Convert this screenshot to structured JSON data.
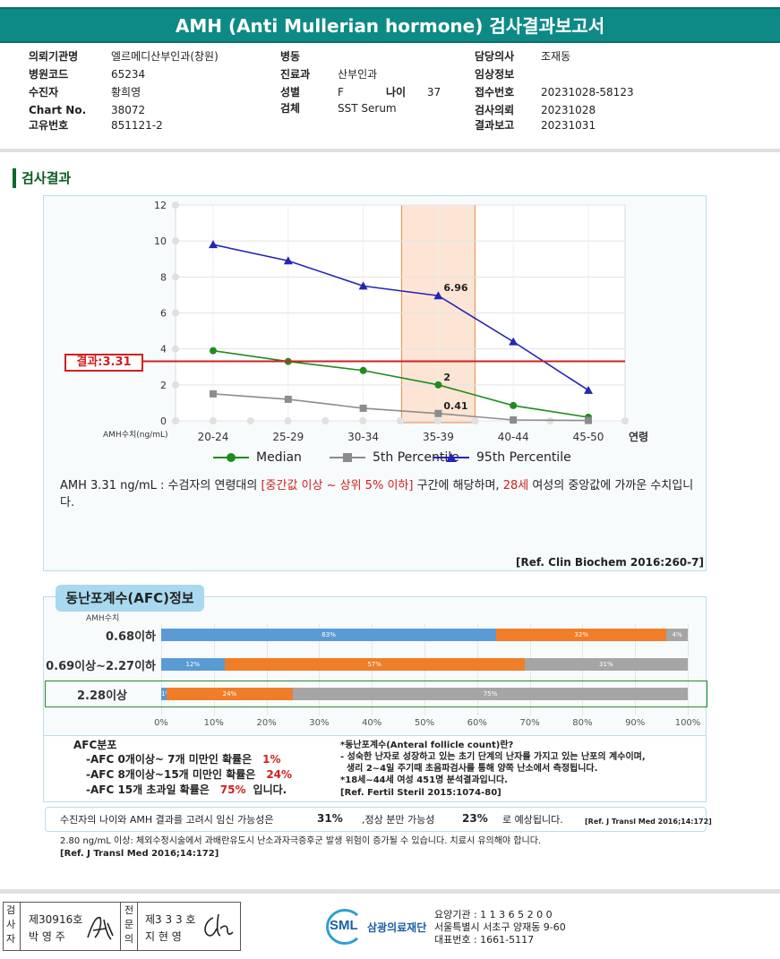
{
  "header": {
    "title": "AMH (Anti Mullerian hormone) 검사결과보고서"
  },
  "info": {
    "col1": [
      {
        "k": "의뢰기관명",
        "v": "엘르메디산부인과(창원)"
      },
      {
        "k": "병원코드",
        "v": "65234"
      },
      {
        "k": "수진자",
        "v": "황희영"
      },
      {
        "k": "Chart No.",
        "v": "38072"
      },
      {
        "k": "고유번호",
        "v": "851121-2"
      }
    ],
    "col2": [
      {
        "k": "병동",
        "v": ""
      },
      {
        "k": "진료과",
        "v": "산부인과"
      },
      {
        "k": "성별",
        "v": "F"
      },
      {
        "k": "검체",
        "v": "SST Serum"
      }
    ],
    "age_label": "나이",
    "age_value": "37",
    "col3": [
      {
        "k": "담당의사",
        "v": "조재동"
      },
      {
        "k": "임상정보",
        "v": ""
      },
      {
        "k": "접수번호",
        "v": "20231028-58123"
      },
      {
        "k": "검사의뢰",
        "v": "20231028"
      },
      {
        "k": "결과보고",
        "v": "20231031"
      }
    ]
  },
  "section_title": "검사결과",
  "chart_data": {
    "type": "line",
    "categories": [
      "20-24",
      "25-29",
      "30-34",
      "35-39",
      "40-44",
      "45-50"
    ],
    "xlabel": "연령",
    "ylabel": "AMH수치(ng/mL)",
    "ylim": [
      0,
      12
    ],
    "yticks": [
      "0",
      "2",
      "4",
      "6",
      "8",
      "10",
      "12"
    ],
    "grid": true,
    "highlight_category": "35-39",
    "result_line": {
      "label": "결과:3.31",
      "value": 3.31,
      "color": "#d02020"
    },
    "series": [
      {
        "name": "Median",
        "values": [
          3.9,
          3.3,
          2.8,
          2.0,
          0.85,
          0.2
        ],
        "color": "#1e8c1e",
        "marker": "circle"
      },
      {
        "name": "5th Percentile",
        "values": [
          1.5,
          1.2,
          0.7,
          0.41,
          0.05,
          0.02
        ],
        "color": "#8c8c8c",
        "marker": "square"
      },
      {
        "name": "95th Percentile",
        "values": [
          9.8,
          8.9,
          7.5,
          6.96,
          4.4,
          1.7
        ],
        "color": "#2525b5",
        "marker": "triangle"
      }
    ],
    "data_labels": [
      {
        "series": "95th Percentile",
        "category": "35-39",
        "text": "6.96"
      },
      {
        "series": "Median",
        "category": "35-39",
        "text": "2"
      },
      {
        "series": "5th Percentile",
        "category": "35-39",
        "text": "0.41"
      }
    ]
  },
  "description": {
    "prefix": "AMH  3.31 ng/mL : 수검자의 연령대의 ",
    "range": "[중간값 이상 ~ 상위 5% 이하]",
    "mid": " 구간에 해당하며, ",
    "age": "28세",
    "suffix": " 여성의 중앙값에 가까운 수치입니다.",
    "ref": "[Ref. Clin Biochem 2016:260-7]"
  },
  "afc": {
    "title": "동난포계수(AFC)정보",
    "axis_caption": "AMH수치",
    "rows": [
      {
        "label": "0.68이하",
        "segments": [
          {
            "v": 63,
            "t": "63%"
          },
          {
            "v": 32,
            "t": "32%"
          },
          {
            "v": 4,
            "t": "4%"
          }
        ]
      },
      {
        "label": "0.69이상~2.27이하",
        "segments": [
          {
            "v": 12,
            "t": "12%"
          },
          {
            "v": 57,
            "t": "57%"
          },
          {
            "v": 31,
            "t": "31%"
          }
        ]
      },
      {
        "label": "2.28이상",
        "segments": [
          {
            "v": 1,
            "t": "1%"
          },
          {
            "v": 24,
            "t": "24%"
          },
          {
            "v": 75,
            "t": "75%"
          }
        ]
      }
    ],
    "highlight_row": 2,
    "ticks": [
      "0%",
      "10%",
      "20%",
      "30%",
      "40%",
      "50%",
      "60%",
      "70%",
      "80%",
      "90%",
      "100%"
    ],
    "dist_title": "AFC분포",
    "dist": [
      {
        "text": "-AFC 0개이상~ 7개 미만인 확률은",
        "value": "1%",
        "end": ""
      },
      {
        "text": "-AFC 8개이상~15개 미만인 확률은",
        "value": "24%",
        "end": ""
      },
      {
        "text": "-AFC 15개 초과일 확률은",
        "value": "75%",
        "end": "입니다."
      }
    ],
    "note_title": "*동난포계수(Anteral follicle count)란?",
    "note_lines": [
      "- 성숙한 난자로 성장하고 있는 초기 단계의 난자를 가지고 있는 난포의 계수이며,",
      "  생리 2~4일 주기때 초음파검사를 통해 양쪽 난소에서 측정됩니다.",
      "*18세~44세 여성 451명 분석결과입니다."
    ],
    "note_ref": "[Ref. Fertil Steril 2015:1074-80]"
  },
  "pregnancy": {
    "prefix": "수진자의  나이와 AMH 결과를 고려시 임신 가능성은",
    "value1": "31%",
    "mid": ",정상 분만 가능성",
    "value2": "23%",
    "suffix": "로 예상됩니다.",
    "ref": "[Ref. J Transl Med 2016;14:172]"
  },
  "warning": {
    "text": "2.80  ng/mL  이상: 체외수정시술에서 과배란유도시 난소과자극증후군 발생 위험이 증가될 수 있습니다. 치료시 유의해야 합니다.",
    "ref": "[Ref. J Transl Med 2016;14:172]"
  },
  "footer": {
    "inspector_label": "검사자",
    "inspector_no": "제30916호",
    "inspector_name": "박 영 주",
    "specialist_label": "전문의",
    "specialist_no": "제3 3 3 호",
    "specialist_name": "지 현 영",
    "logo_text": "SML",
    "org_name": "삼광의료재단",
    "org_code": "요양기관 : 1 1 3 6 5 2 0 0",
    "org_address": "서울특별시 서초구 양재동 9-60",
    "org_phone": "대표번호 : 1661-5117"
  }
}
